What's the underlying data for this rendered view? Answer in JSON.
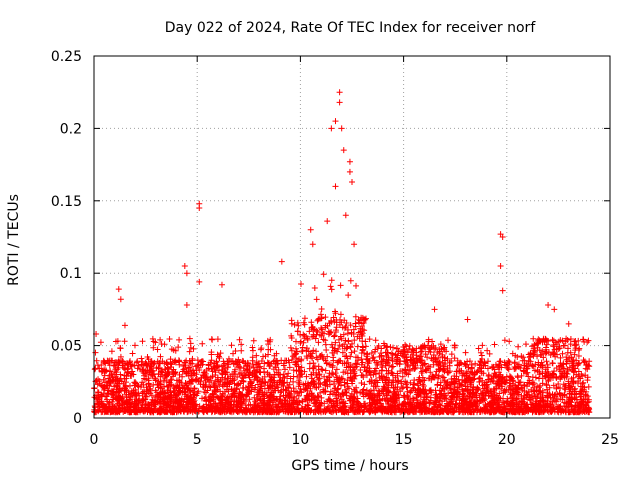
{
  "chart_data": {
    "type": "scatter",
    "title": "Day 022 of 2024, Rate Of TEC Index for receiver norf",
    "xlabel": "GPS time / hours",
    "ylabel": "ROTI / TECUs",
    "xlim": [
      0,
      25
    ],
    "ylim": [
      0,
      0.25
    ],
    "xticks": [
      0,
      5,
      10,
      15,
      20,
      25
    ],
    "xtick_labels": [
      "0",
      "5",
      "10",
      "15",
      "20",
      "25"
    ],
    "yticks": [
      0,
      0.05,
      0.1,
      0.15,
      0.2,
      0.25
    ],
    "ytick_labels": [
      "0",
      "0.05",
      "0.1",
      "0.15",
      "0.2",
      "0.25"
    ],
    "grid": true,
    "marker": "+",
    "color": "#ff0000",
    "notable_points": [
      {
        "x": 0.1,
        "y": 0.058
      },
      {
        "x": 1.2,
        "y": 0.089
      },
      {
        "x": 1.3,
        "y": 0.082
      },
      {
        "x": 1.5,
        "y": 0.064
      },
      {
        "x": 4.4,
        "y": 0.105
      },
      {
        "x": 4.5,
        "y": 0.1
      },
      {
        "x": 4.5,
        "y": 0.078
      },
      {
        "x": 5.1,
        "y": 0.148
      },
      {
        "x": 5.1,
        "y": 0.145
      },
      {
        "x": 5.1,
        "y": 0.094
      },
      {
        "x": 6.2,
        "y": 0.092
      },
      {
        "x": 9.1,
        "y": 0.108
      },
      {
        "x": 10.5,
        "y": 0.13
      },
      {
        "x": 10.6,
        "y": 0.12
      },
      {
        "x": 11.3,
        "y": 0.136
      },
      {
        "x": 11.5,
        "y": 0.2
      },
      {
        "x": 11.7,
        "y": 0.205
      },
      {
        "x": 11.9,
        "y": 0.225
      },
      {
        "x": 11.9,
        "y": 0.218
      },
      {
        "x": 12.0,
        "y": 0.2
      },
      {
        "x": 12.1,
        "y": 0.185
      },
      {
        "x": 11.7,
        "y": 0.16
      },
      {
        "x": 12.4,
        "y": 0.177
      },
      {
        "x": 12.5,
        "y": 0.163
      },
      {
        "x": 12.4,
        "y": 0.17
      },
      {
        "x": 12.2,
        "y": 0.14
      },
      {
        "x": 12.6,
        "y": 0.12
      },
      {
        "x": 16.5,
        "y": 0.075
      },
      {
        "x": 18.1,
        "y": 0.068
      },
      {
        "x": 19.7,
        "y": 0.127
      },
      {
        "x": 19.8,
        "y": 0.125
      },
      {
        "x": 19.7,
        "y": 0.105
      },
      {
        "x": 19.8,
        "y": 0.088
      },
      {
        "x": 22.0,
        "y": 0.078
      },
      {
        "x": 22.3,
        "y": 0.075
      },
      {
        "x": 23.0,
        "y": 0.065
      }
    ],
    "base_noise": {
      "x_range": [
        0,
        24
      ],
      "typical_min": 0.004,
      "typical_max": 0.04
    }
  }
}
